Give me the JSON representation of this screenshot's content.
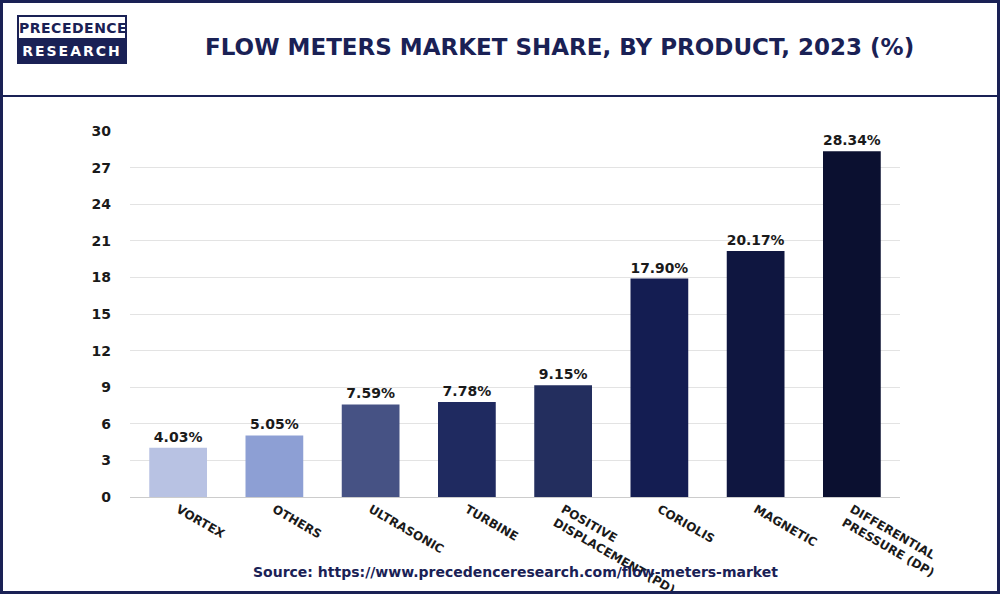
{
  "chart_data": {
    "type": "bar",
    "title": "FLOW METERS MARKET SHARE, BY PRODUCT, 2023 (%)",
    "logo": [
      "PRECEDENCE",
      "RESEARCH"
    ],
    "source": "Source: https://www.precedenceresearch.com/flow-meters-market",
    "categories": [
      "VORTEX",
      "OTHERS",
      "ULTRASONIC",
      "TURBINE",
      "POSITIVE DISPLACEMENT (PD)",
      "CORIOLIS",
      "MAGNETIC",
      "DIFFERENTIAL PRESSURE (DP)"
    ],
    "values": [
      4.03,
      5.05,
      7.59,
      7.78,
      9.15,
      17.9,
      20.17,
      28.34
    ],
    "value_labels": [
      "4.03%",
      "5.05%",
      "7.59%",
      "7.78%",
      "9.15%",
      "17.90%",
      "20.17%",
      "28.34%"
    ],
    "colors": [
      "#b8c2e3",
      "#8d9fd4",
      "#465284",
      "#1f2a60",
      "#232e5e",
      "#141d52",
      "#0f1640",
      "#0b1030"
    ],
    "ylim": [
      0,
      30
    ],
    "yticks": [
      0,
      3,
      6,
      9,
      12,
      15,
      18,
      21,
      24,
      27,
      30
    ],
    "grid": true,
    "data_labels": true
  }
}
